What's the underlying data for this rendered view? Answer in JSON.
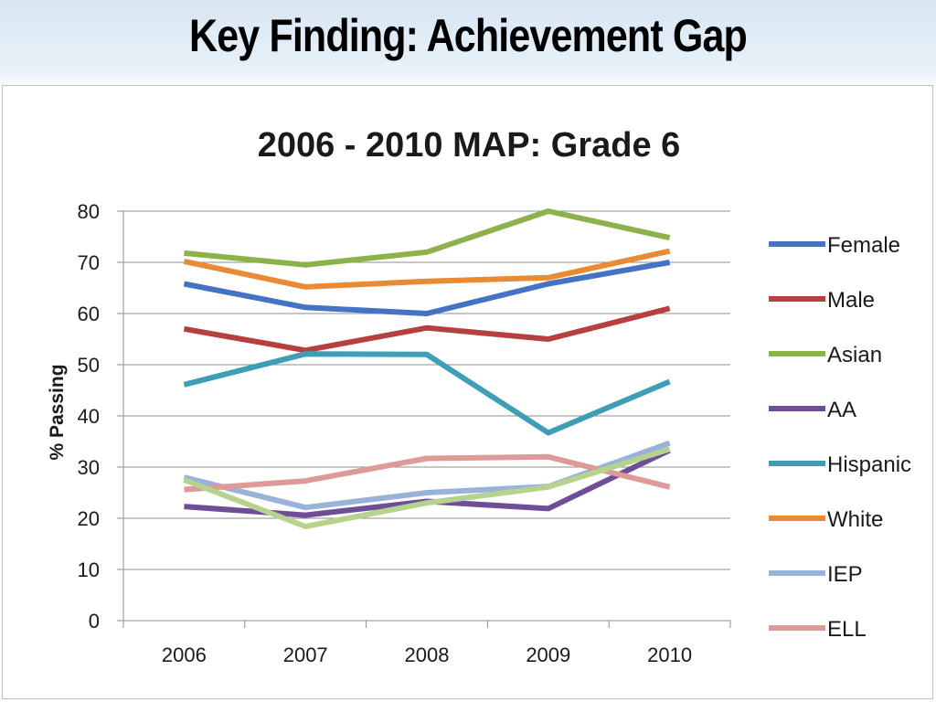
{
  "slide": {
    "title": "Key Finding:  Achievement Gap"
  },
  "chart_data": {
    "type": "line",
    "title": "2006 - 2010 MAP: Grade 6",
    "xlabel": "",
    "ylabel": "% Passing",
    "x": [
      "2006",
      "2007",
      "2008",
      "2009",
      "2010"
    ],
    "ylim": [
      0,
      80
    ],
    "yticks": [
      0,
      10,
      20,
      30,
      40,
      50,
      60,
      70,
      80
    ],
    "grid": "horizontal",
    "legend_position": "right",
    "series": [
      {
        "name": "Female",
        "color": "#4472C4",
        "values": [
          65.8,
          61.2,
          60.0,
          65.8,
          70.0
        ]
      },
      {
        "name": "Male",
        "color": "#B5403F",
        "values": [
          57.0,
          52.8,
          57.2,
          55.0,
          61.0
        ]
      },
      {
        "name": "Asian",
        "color": "#8CB24A",
        "values": [
          71.8,
          69.5,
          72.0,
          80.0,
          74.8
        ]
      },
      {
        "name": "AA",
        "color": "#6E4E96",
        "values": [
          22.3,
          20.6,
          23.3,
          21.9,
          33.3
        ]
      },
      {
        "name": "Hispanic",
        "color": "#3D9EB5",
        "values": [
          46.1,
          52.1,
          52.0,
          36.7,
          46.7
        ]
      },
      {
        "name": "White",
        "color": "#E98A34",
        "values": [
          70.2,
          65.2,
          66.3,
          67.0,
          72.2
        ]
      },
      {
        "name": "IEP",
        "color": "#98B2DA",
        "values": [
          28.0,
          22.1,
          25.0,
          26.2,
          34.7
        ]
      },
      {
        "name": "ELL",
        "color": "#DE9A98",
        "values": [
          25.6,
          27.3,
          31.7,
          32.0,
          26.1
        ]
      },
      {
        "name": "",
        "color": "#B6D38E",
        "values": [
          27.5,
          18.4,
          23.0,
          26.1,
          33.5
        ]
      }
    ]
  }
}
